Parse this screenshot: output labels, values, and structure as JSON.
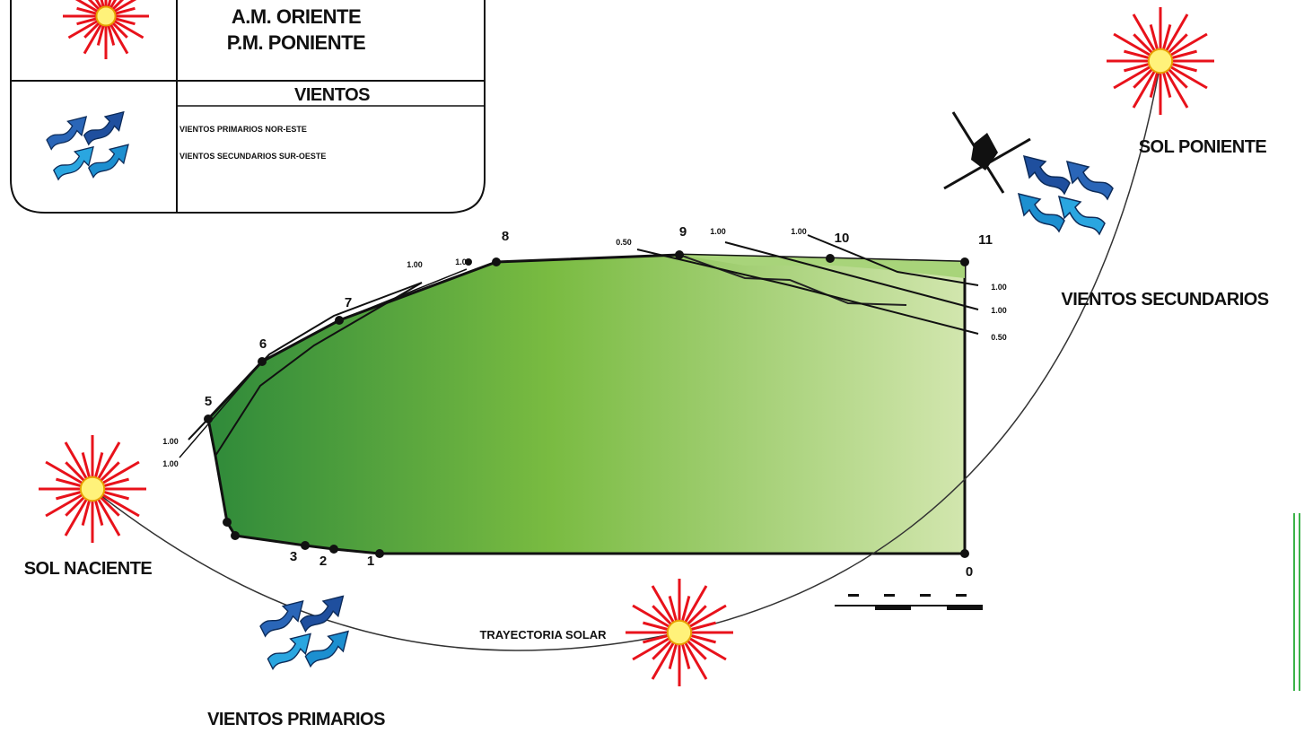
{
  "legend": {
    "sun_lines": [
      "A.M. ORIENTE",
      "P.M. PONIENTE"
    ],
    "winds_title": "VIENTOS",
    "winds_lines": [
      "VIENTOS PRIMARIOS  NOR-ESTE",
      "VIENTOS SECUNDARIOS  SUR-OESTE"
    ]
  },
  "labels": {
    "sol_poniente": "SOL PONIENTE",
    "vientos_secundarios": "VIENTOS SECUNDARIOS",
    "sol_naciente": "SOL NACIENTE",
    "trayectoria": "TRAYECTORIA SOLAR",
    "vientos_primarios": "VIENTOS PRIMARIOS"
  },
  "vertices": [
    "1",
    "2",
    "3",
    "5",
    "6",
    "7",
    "8",
    "9",
    "10",
    "11",
    "0"
  ],
  "dimensions": [
    "1.00",
    "1.00",
    "1.00",
    "1.00",
    "0.50",
    "1.00",
    "1.00",
    "1.00",
    "1.00",
    "0.50"
  ]
}
